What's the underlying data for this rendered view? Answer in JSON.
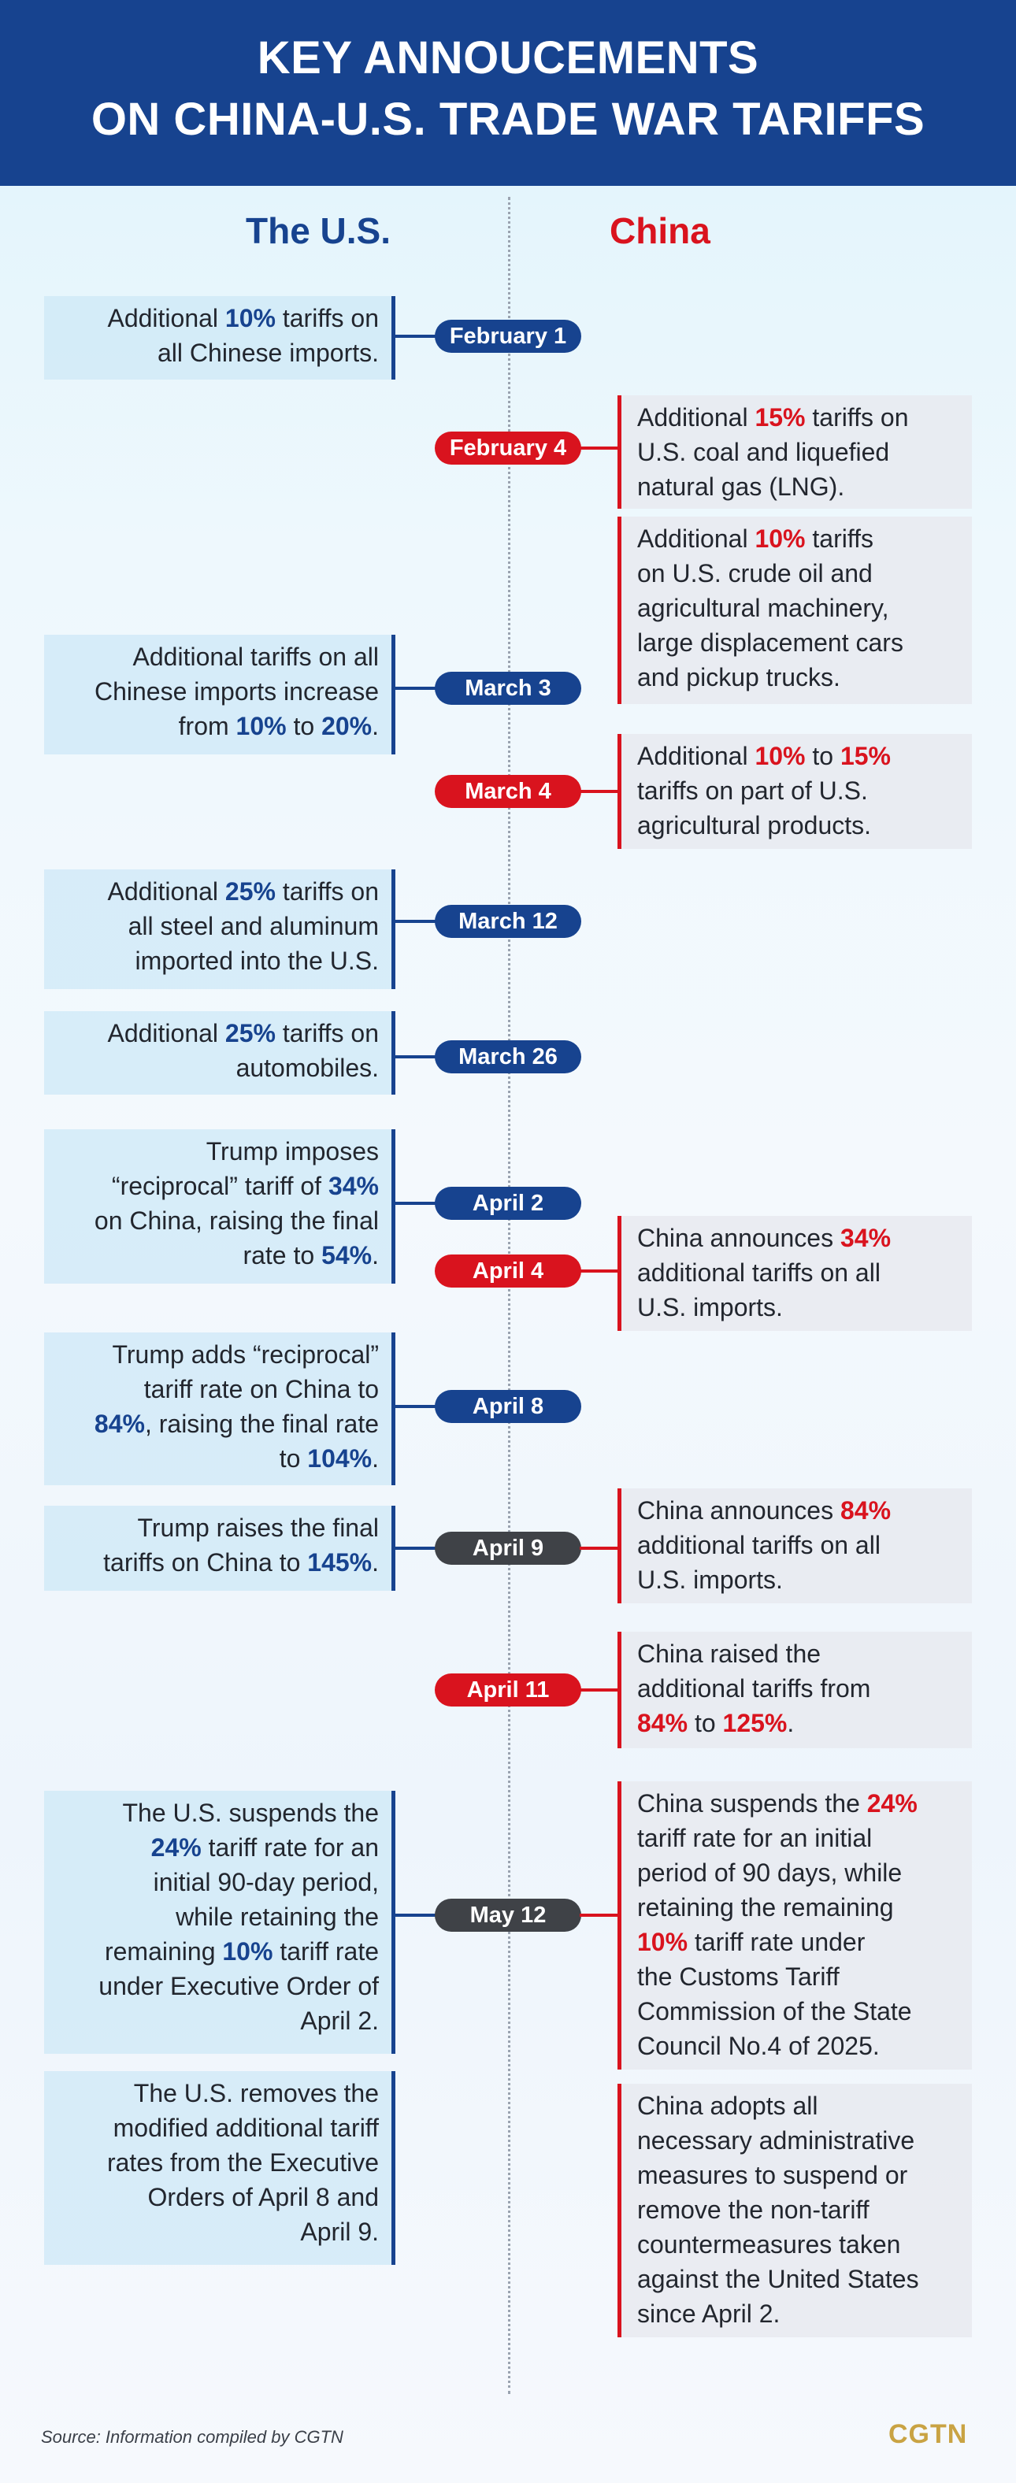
{
  "header": {
    "title_line1": "KEY ANNOUCEMENTS",
    "title_line2": "ON CHINA-U.S. TRADE WAR TARIFFS"
  },
  "columns": {
    "us": "The U.S.",
    "china": "China"
  },
  "dates": {
    "feb1": "February 1",
    "feb4": "February 4",
    "mar3": "March 3",
    "mar4": "March 4",
    "mar12": "March 12",
    "mar26": "March 26",
    "apr2": "April 2",
    "apr4": "April 4",
    "apr8": "April 8",
    "apr9": "April 9",
    "apr11": "April 11",
    "may12": "May 12"
  },
  "us_items": {
    "feb1": {
      "a": "Additional ",
      "b": "10%",
      "c": " tariffs on",
      "d": "all Chinese imports."
    },
    "mar3": {
      "a": "Additional tariffs on all",
      "b": "Chinese imports increase",
      "c": "from ",
      "d": "10%",
      "e": " to ",
      "f": "20%",
      "g": "."
    },
    "mar12": {
      "a": "Additional ",
      "b": "25%",
      "c": " tariffs on",
      "d": "all steel and aluminum",
      "e": "imported into the U.S."
    },
    "mar26": {
      "a": "Additional ",
      "b": "25%",
      "c": " tariffs on",
      "d": "automobiles."
    },
    "apr2": {
      "a": "Trump imposes",
      "b": "“reciprocal” tariff of ",
      "c": "34%",
      "d": "on China, raising the final",
      "e": "rate to ",
      "f": "54%",
      "g": "."
    },
    "apr8": {
      "a": "Trump adds “reciprocal”",
      "b": "tariff rate on China to",
      "c": "84%",
      "d": ", raising the final rate",
      "e": "to ",
      "f": "104%",
      "g": "."
    },
    "apr9": {
      "a": "Trump raises the final",
      "b": "tariffs on China to ",
      "c": "145%",
      "d": "."
    },
    "may12": {
      "a": "The U.S. suspends the",
      "b": "24%",
      "c": " tariff rate for an",
      "d": "initial 90-day period,",
      "e": "while retaining the",
      "f": "remaining ",
      "g": "10%",
      "h": " tariff rate",
      "i": "under Executive Order of",
      "j": "April 2."
    },
    "remove": {
      "a": "The U.S. removes the",
      "b": "modified additional tariff",
      "c": "rates from the Executive",
      "d": "Orders of April 8 and",
      "e": "April 9."
    }
  },
  "cn_items": {
    "feb4": {
      "a": "Additional ",
      "b": "15%",
      "c": " tariffs on",
      "d": "U.S. coal and liquefied",
      "e": "natural gas (LNG)."
    },
    "feb4b": {
      "a": "Additional ",
      "b": "10%",
      "c": " tariffs",
      "d": "on U.S. crude oil and",
      "e": "agricultural machinery,",
      "f": "large displacement cars",
      "g": "and pickup trucks."
    },
    "mar4": {
      "a": "Additional ",
      "b": "10%",
      "c": " to ",
      "d": "15%",
      "e": "tariffs on part of U.S.",
      "f": "agricultural products."
    },
    "apr4": {
      "a": "China announces ",
      "b": "34%",
      "c": "additional tariffs on all",
      "d": "U.S. imports."
    },
    "apr9": {
      "a": "China announces ",
      "b": "84%",
      "c": "additional tariffs on all",
      "d": "U.S. imports."
    },
    "apr11": {
      "a": "China raised the",
      "b": "additional tariffs from",
      "c": "84%",
      "d": " to ",
      "e": "125%",
      "f": "."
    },
    "may12": {
      "a": "China suspends the ",
      "b": "24%",
      "c": "tariff rate for an initial",
      "d": "period of 90 days, while",
      "e": "retaining the remaining",
      "f": "10%",
      "g": " tariff rate under",
      "h": "the Customs Tariff",
      "i": "Commission of the State",
      "j": "Council No.4 of 2025."
    },
    "measures": {
      "a": "China adopts all",
      "b": "necessary administrative",
      "c": "measures to suspend or",
      "d": "remove the non-tariff",
      "e": "countermeasures taken",
      "f": "against the United States",
      "g": "since April 2."
    }
  },
  "footer": {
    "source": "Source: Information compiled by CGTN",
    "logo": "CGTN"
  },
  "colors": {
    "us_blue": "#17438f",
    "china_red": "#d9131e",
    "both_gray": "#3f4247",
    "logo_gold": "#c9a343"
  }
}
